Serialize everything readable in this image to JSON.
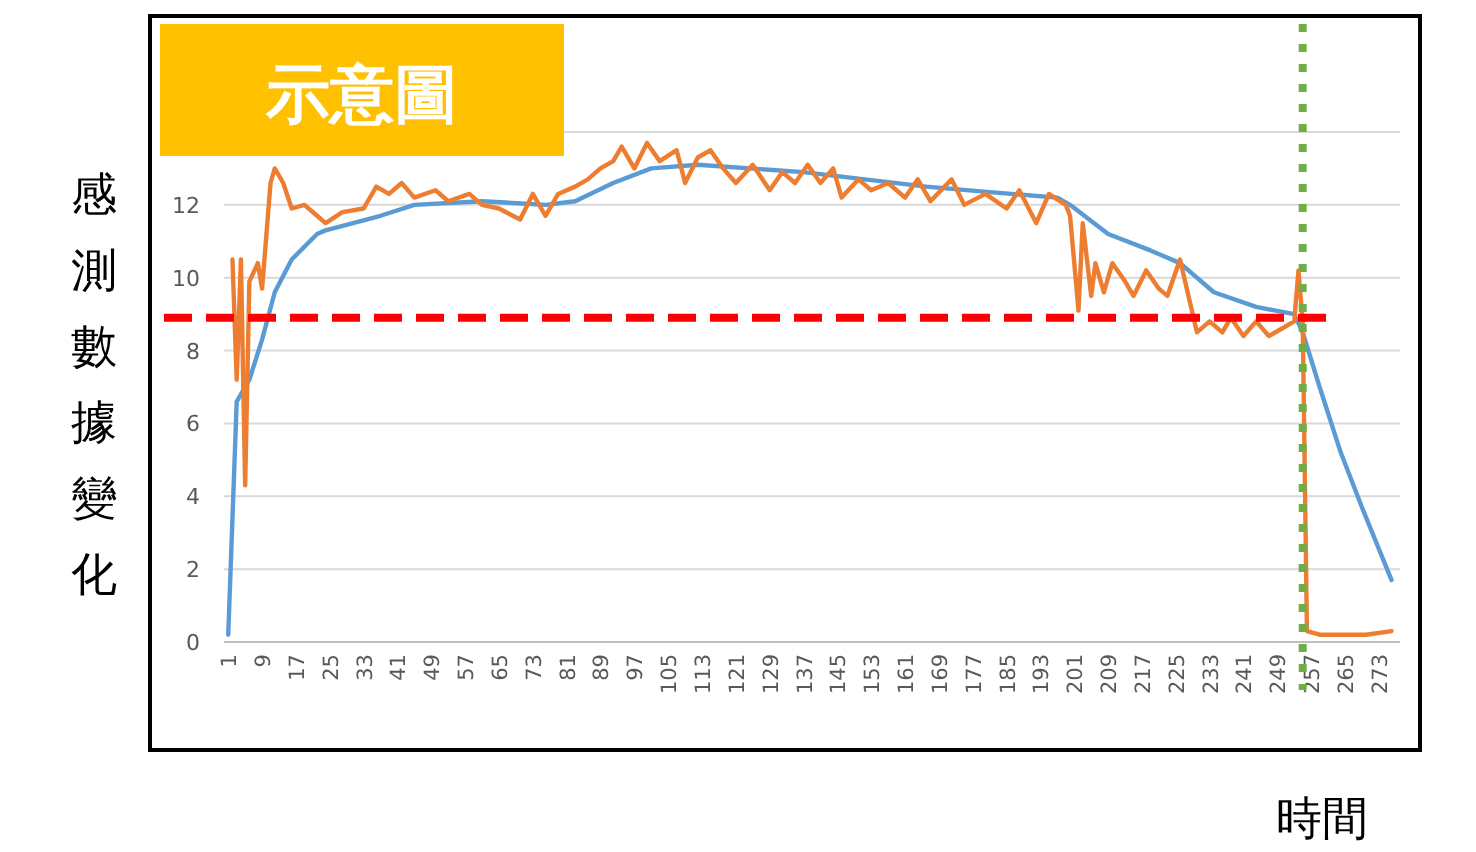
{
  "chart_data": {
    "type": "line",
    "title": "示意圖",
    "xlabel": "時間",
    "ylabel": "感測數據變化",
    "xlim": [
      0,
      278
    ],
    "xticks": [
      1,
      9,
      17,
      25,
      33,
      41,
      49,
      57,
      65,
      73,
      81,
      89,
      97,
      105,
      113,
      121,
      129,
      137,
      145,
      153,
      161,
      169,
      177,
      185,
      193,
      201,
      209,
      217,
      225,
      233,
      241,
      249,
      257,
      265,
      273
    ],
    "ylim": [
      0,
      14
    ],
    "yticks": [
      0,
      2,
      4,
      6,
      8,
      10,
      12,
      {
        "value": 14,
        "label": null
      }
    ],
    "grid": "y",
    "marker": "none",
    "line_style": "solid",
    "series": [
      {
        "color": "#5b9bd5",
        "x": [
          1,
          3,
          6,
          9,
          12,
          16,
          22,
          24,
          37,
          45,
          61,
          76,
          83,
          92,
          101,
          112,
          137,
          166,
          181,
          197,
          200,
          209,
          219,
          226,
          234,
          244,
          253,
          255,
          259,
          264,
          269,
          276
        ],
        "values": [
          0.2,
          6.6,
          7.2,
          8.3,
          9.6,
          10.5,
          11.2,
          11.3,
          11.7,
          12.0,
          12.1,
          12.0,
          12.1,
          12.6,
          13.0,
          13.1,
          12.9,
          12.5,
          12.35,
          12.2,
          12.0,
          11.2,
          10.75,
          10.4,
          9.6,
          9.2,
          9.0,
          8.5,
          7.0,
          5.2,
          3.7,
          1.7
        ]
      },
      {
        "color": "#ed7d31",
        "x": [
          2,
          3,
          4,
          5,
          6,
          8,
          9,
          11,
          12,
          14,
          16,
          19,
          22,
          24,
          28,
          33,
          36,
          39,
          42,
          45,
          50,
          53,
          58,
          61,
          65,
          70,
          73,
          76,
          79,
          83,
          86,
          89,
          92,
          94,
          97,
          100,
          103,
          107,
          109,
          112,
          115,
          118,
          121,
          125,
          129,
          132,
          135,
          138,
          141,
          144,
          146,
          150,
          153,
          157,
          161,
          164,
          167,
          172,
          175,
          180,
          185,
          188,
          192,
          195,
          199,
          200,
          202,
          203,
          205,
          206,
          208,
          210,
          213,
          215,
          218,
          221,
          223,
          226,
          228,
          230,
          233,
          236,
          238,
          241,
          244,
          247,
          250,
          253,
          254,
          255,
          256,
          259,
          266,
          270,
          276
        ],
        "values": [
          10.5,
          7.2,
          10.5,
          4.3,
          9.9,
          10.4,
          9.7,
          12.6,
          13.0,
          12.6,
          11.9,
          12.0,
          11.7,
          11.5,
          11.8,
          11.9,
          12.5,
          12.3,
          12.6,
          12.2,
          12.4,
          12.1,
          12.3,
          12.0,
          11.9,
          11.6,
          12.3,
          11.7,
          12.3,
          12.5,
          12.7,
          13.0,
          13.2,
          13.6,
          13.0,
          13.7,
          13.2,
          13.5,
          12.6,
          13.3,
          13.5,
          13.0,
          12.6,
          13.1,
          12.4,
          12.9,
          12.6,
          13.1,
          12.6,
          13.0,
          12.2,
          12.7,
          12.4,
          12.6,
          12.2,
          12.7,
          12.1,
          12.7,
          12.0,
          12.3,
          11.9,
          12.4,
          11.5,
          12.3,
          12.0,
          11.7,
          9.1,
          11.5,
          9.5,
          10.4,
          9.6,
          10.4,
          9.9,
          9.5,
          10.2,
          9.7,
          9.5,
          10.5,
          9.5,
          8.5,
          8.8,
          8.5,
          8.9,
          8.4,
          8.8,
          8.4,
          8.6,
          8.8,
          10.2,
          8.8,
          0.3,
          0.2,
          0.2,
          0.2,
          0.3
        ]
      }
    ],
    "ref_lines": [
      {
        "axis": "y",
        "value": 8.9,
        "color": "#ff0000",
        "line_style": "dashed"
      },
      {
        "axis": "x",
        "value": 255,
        "color": "#70ad47",
        "line_style": "dotted"
      }
    ]
  }
}
